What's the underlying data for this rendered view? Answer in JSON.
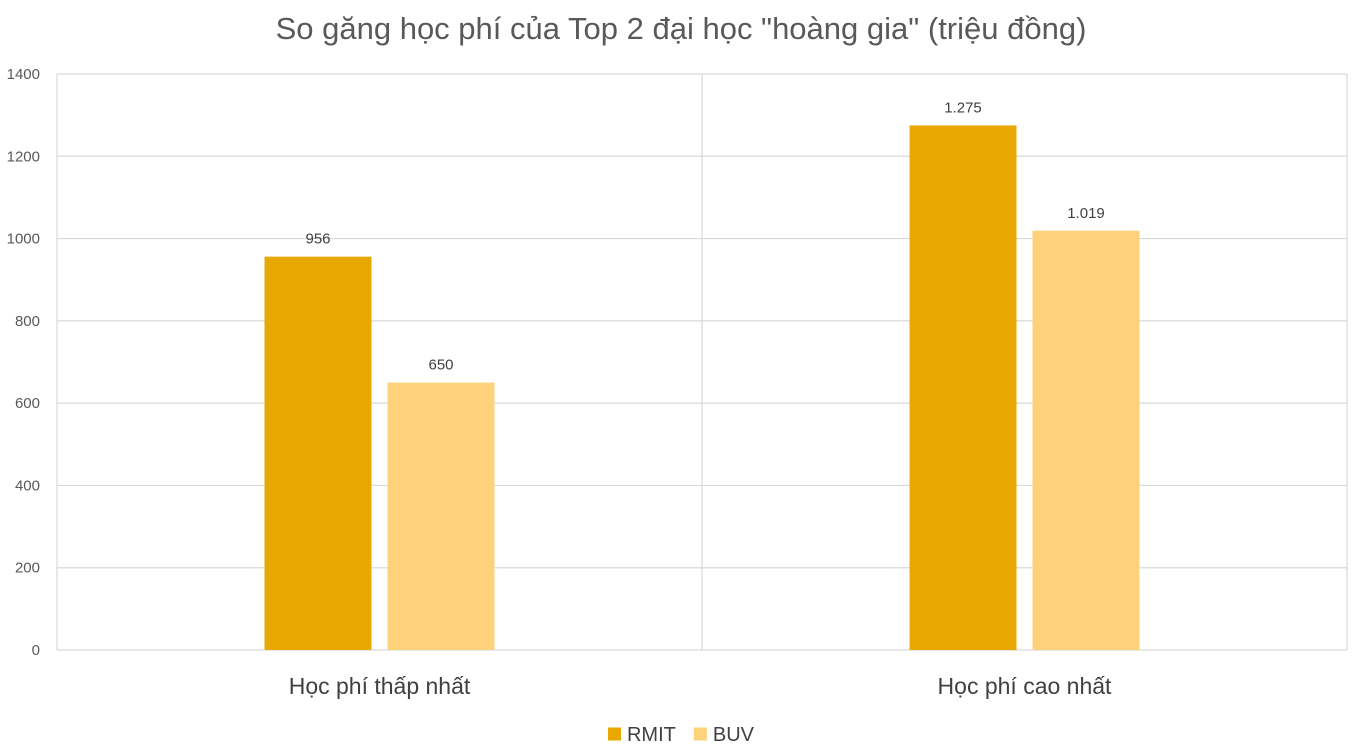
{
  "chart_data": {
    "type": "bar",
    "title": "So găng học phí của Top 2 đại học \"hoàng gia\" (triệu đồng)",
    "xlabel": "",
    "ylabel": "",
    "categories": [
      "Học phí thấp nhất",
      "Học phí cao nhất"
    ],
    "series": [
      {
        "name": "RMIT",
        "color": "#e8a800",
        "values": [
          956,
          1275
        ],
        "labels": [
          "956",
          "1.275"
        ]
      },
      {
        "name": "BUV",
        "color": "#fdd27a",
        "values": [
          650,
          1019
        ],
        "labels": [
          "650",
          "1.019"
        ]
      }
    ],
    "ylim": [
      0,
      1400
    ],
    "yticks": [
      0,
      200,
      400,
      600,
      800,
      1000,
      1200,
      1400
    ],
    "ytick_labels": [
      "0",
      "200",
      "400",
      "600",
      "800",
      "1000",
      "1200",
      "1400"
    ],
    "grid": true,
    "legend_position": "bottom-center"
  }
}
